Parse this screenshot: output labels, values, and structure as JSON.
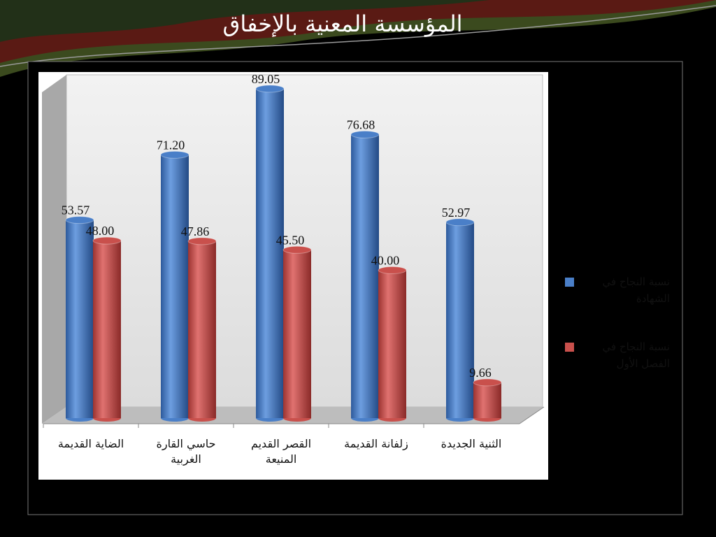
{
  "chart_data": {
    "type": "bar",
    "title": "المؤسسة المعنية بالإخفاق",
    "categories": [
      "الضاية القديمة",
      "حاسي القارة الغربية",
      "القصر القديم المنيعة",
      "زلفانة القديمة",
      "الثنية الجديدة"
    ],
    "series": [
      {
        "name": "نسبة النجاح في الشهادة",
        "color": "#4a7fc8",
        "values": [
          53.57,
          71.2,
          89.05,
          76.68,
          52.97
        ],
        "value_labels": [
          "53.57",
          "71.20",
          "89.05",
          "76.68",
          "52.97"
        ]
      },
      {
        "name": "نسبة النجاح في الفصل الأول",
        "color": "#c9504c",
        "values": [
          48,
          47.86,
          45.5,
          40,
          9.66
        ],
        "value_labels": [
          "48.00",
          "47.86",
          "45.50",
          "40.00",
          "9.66"
        ]
      }
    ],
    "legend": "right"
  }
}
